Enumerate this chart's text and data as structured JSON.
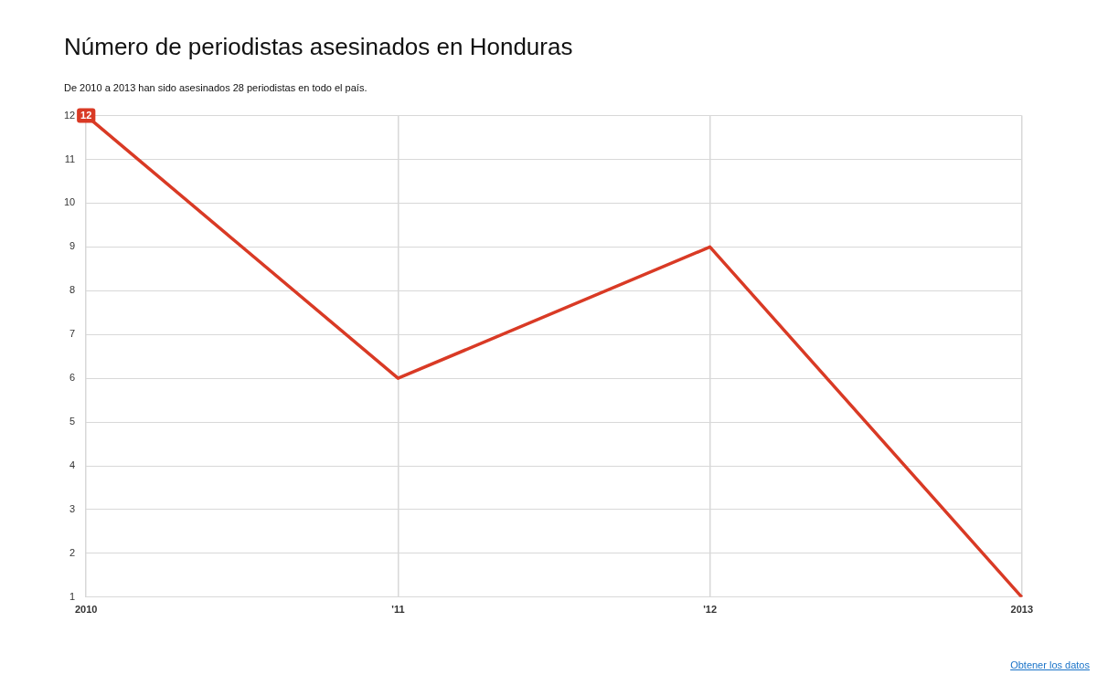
{
  "chart_data": {
    "type": "line",
    "title": "Número de periodistas asesinados en Honduras",
    "subtitle": "De 2010 a 2013 han sido asesinados 28 periodistas en todo el país.",
    "categories": [
      "2010",
      "'11",
      "'12",
      "2013"
    ],
    "values": [
      12,
      6,
      9,
      1
    ],
    "color": "#d93a25",
    "value_labels": [
      "12",
      null,
      null,
      null
    ],
    "ylim": [
      1,
      12
    ],
    "yticks": [
      1,
      2,
      3,
      4,
      5,
      6,
      7,
      8,
      9,
      10,
      11,
      12
    ],
    "grid": true,
    "annotations": [
      "Obtener los datos"
    ]
  }
}
